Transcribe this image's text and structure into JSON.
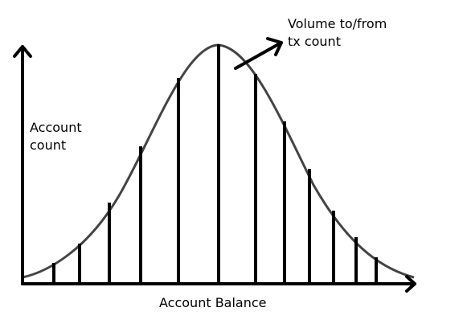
{
  "labels": {
    "y_axis_line1": "Account",
    "y_axis_line2": "count",
    "x_axis": "Account Balance",
    "annotation_line1": "Volume to/from",
    "annotation_line2": "tx count"
  },
  "colors": {
    "axis": "#000000",
    "curve": "#444444",
    "bars": "#000000",
    "background": "#ffffff"
  },
  "diagram": {
    "type": "bell-curve-with-vertical-lines",
    "vertical_line_count": 13
  }
}
